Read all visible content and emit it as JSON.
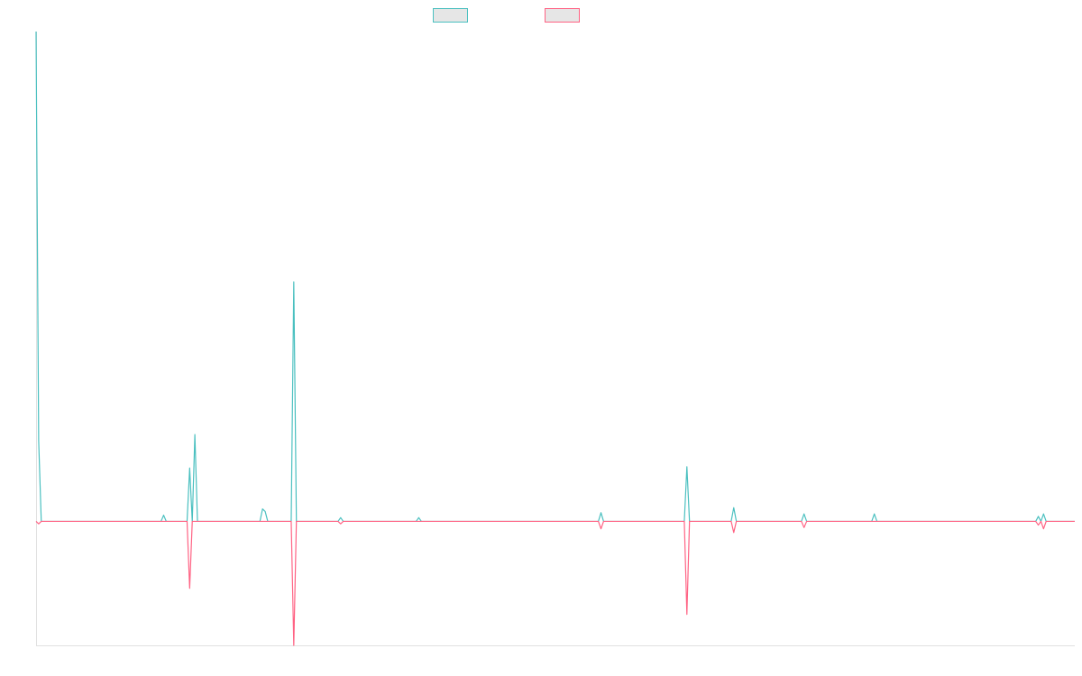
{
  "chart_data": {
    "type": "line",
    "title": "",
    "xlabel": "",
    "ylabel": "",
    "grid": false,
    "legend": "top-center",
    "x_count": 400,
    "ylim": [
      -1,
      3.95
    ],
    "series": [
      {
        "color": "#4bc0c0",
        "points": [
          [
            0,
            3.95
          ],
          [
            1,
            0.65
          ],
          [
            2,
            0
          ],
          [
            48,
            0
          ],
          [
            49,
            0.05
          ],
          [
            50,
            0
          ],
          [
            58,
            0
          ],
          [
            59,
            0.43
          ],
          [
            60,
            0
          ],
          [
            61,
            0.7
          ],
          [
            62,
            0
          ],
          [
            86,
            0
          ],
          [
            87,
            0.1
          ],
          [
            88,
            0.08
          ],
          [
            89,
            0
          ],
          [
            98,
            0
          ],
          [
            99,
            1.93
          ],
          [
            100,
            0
          ],
          [
            116,
            0
          ],
          [
            117,
            0.03
          ],
          [
            118,
            0
          ],
          [
            146,
            0
          ],
          [
            147,
            0.03
          ],
          [
            148,
            0
          ],
          [
            216,
            0
          ],
          [
            217,
            0.07
          ],
          [
            218,
            0
          ],
          [
            249,
            0
          ],
          [
            250,
            0.44
          ],
          [
            251,
            0
          ],
          [
            267,
            0
          ],
          [
            268,
            0.11
          ],
          [
            269,
            0
          ],
          [
            294,
            0
          ],
          [
            295,
            0.06
          ],
          [
            296,
            0
          ],
          [
            321,
            0
          ],
          [
            322,
            0.06
          ],
          [
            323,
            0
          ],
          [
            384,
            0
          ],
          [
            385,
            0.04
          ],
          [
            386,
            0
          ],
          [
            387,
            0.06
          ],
          [
            388,
            0
          ],
          [
            399,
            0
          ]
        ]
      },
      {
        "color": "#ff6384",
        "points": [
          [
            0,
            0
          ],
          [
            1,
            -0.02
          ],
          [
            2,
            0
          ],
          [
            58,
            0
          ],
          [
            59,
            -0.54
          ],
          [
            60,
            0
          ],
          [
            98,
            0
          ],
          [
            99,
            -1
          ],
          [
            100,
            0
          ],
          [
            116,
            0
          ],
          [
            117,
            -0.02
          ],
          [
            118,
            0
          ],
          [
            216,
            0
          ],
          [
            217,
            -0.06
          ],
          [
            218,
            0
          ],
          [
            249,
            0
          ],
          [
            250,
            -0.75
          ],
          [
            251,
            0
          ],
          [
            267,
            0
          ],
          [
            268,
            -0.09
          ],
          [
            269,
            0
          ],
          [
            294,
            0
          ],
          [
            295,
            -0.05
          ],
          [
            296,
            0
          ],
          [
            384,
            0
          ],
          [
            385,
            -0.03
          ],
          [
            386,
            0
          ],
          [
            387,
            -0.06
          ],
          [
            388,
            0
          ],
          [
            399,
            0
          ]
        ]
      }
    ]
  }
}
